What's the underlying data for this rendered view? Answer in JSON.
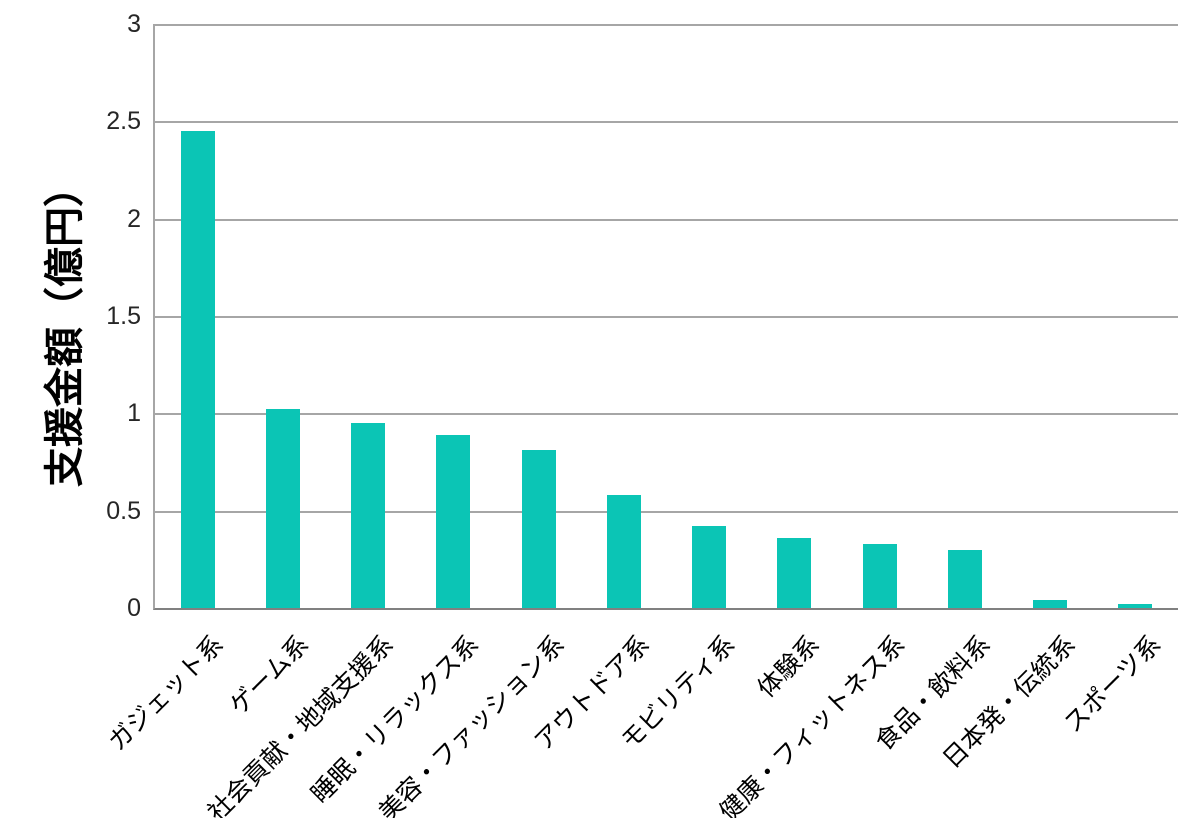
{
  "chart_data": {
    "type": "bar",
    "title": "",
    "xlabel": "",
    "ylabel": "支援金額（億円）",
    "categories": [
      "ガジェット系",
      "ゲーム系",
      "社会貢献・地域支援系",
      "睡眠・リラックス系",
      "美容・ファッション系",
      "アウトドア系",
      "モビリティ系",
      "体験系",
      "健康・フィットネス系",
      "食品・飲料系",
      "日本発・伝統系",
      "スポーツ系"
    ],
    "values": [
      2.45,
      1.02,
      0.95,
      0.89,
      0.81,
      0.58,
      0.42,
      0.36,
      0.33,
      0.3,
      0.04,
      0.02
    ],
    "ylim": [
      0,
      3
    ],
    "ytick_step": 0.5,
    "yticks": [
      "0",
      "0.5",
      "1",
      "1.5",
      "2",
      "2.5",
      "3"
    ],
    "grid": true,
    "legend_position": "none",
    "bar_color": "#0bc5b5",
    "gridline_color": "#a6a6a6",
    "axis_color": "#808080",
    "tick_label_color": "#262626"
  }
}
